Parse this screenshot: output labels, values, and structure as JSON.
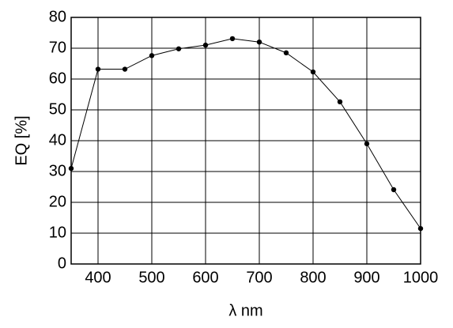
{
  "chart_data": {
    "type": "line",
    "x_label": "λ nm",
    "y_label": "EQ [%]",
    "x": [
      350,
      400,
      450,
      500,
      550,
      600,
      650,
      700,
      750,
      800,
      850,
      900,
      950,
      1000
    ],
    "values": [
      31,
      63.2,
      63.2,
      67.6,
      69.8,
      71,
      73.1,
      72,
      68.5,
      62.3,
      52.6,
      39,
      24.1,
      11.5
    ],
    "color": "#000000",
    "xlim": [
      350,
      1000
    ],
    "xticks": [
      400,
      500,
      600,
      700,
      800,
      900,
      1000
    ],
    "ylim": [
      0,
      80
    ],
    "yticks": [
      0,
      10,
      20,
      30,
      40,
      50,
      60,
      70,
      80
    ],
    "grid": true
  }
}
